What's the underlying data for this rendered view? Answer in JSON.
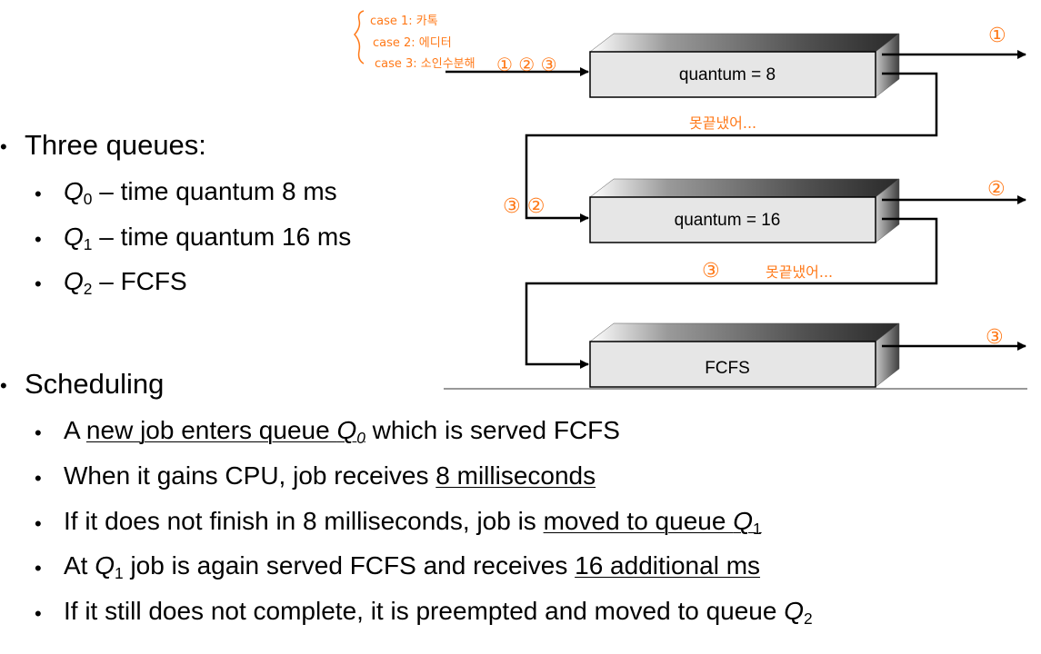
{
  "slide": {
    "three_queues_label": "Three queues:",
    "queues": [
      {
        "name": "Q",
        "sub": "0",
        "desc": "– time quantum 8 ms"
      },
      {
        "name": "Q",
        "sub": "1",
        "desc": "– time quantum 16 ms"
      },
      {
        "name": "Q",
        "sub": "2",
        "desc": "– FCFS"
      }
    ],
    "scheduling_label": "Scheduling",
    "rules": {
      "r1": {
        "pre": "A ",
        "u1": "new job enters queue ",
        "q": "Q",
        "sub": "0",
        "post": " which is served FCFS"
      },
      "r2": {
        "pre": "When it gains CPU, job receives ",
        "u1": "8 milliseconds"
      },
      "r3": {
        "pre": "If it does not finish in 8 milliseconds, job is ",
        "u1": "moved to queue ",
        "q": "Q",
        "sub": "1"
      },
      "r4": {
        "pre": "At ",
        "q": "Q",
        "sub": "1",
        "mid": " job is again served FCFS and receives ",
        "u1": "16 additional ms"
      },
      "r5": {
        "pre": "If it still does not complete, it is preempted and moved to queue ",
        "q": "Q",
        "sub": "2"
      }
    }
  },
  "diagram": {
    "boxes": [
      {
        "label": "quantum = 8"
      },
      {
        "label": "quantum = 16"
      },
      {
        "label": "FCFS"
      }
    ],
    "annotations": {
      "case1": "case 1: 카톡",
      "case2": "case 2: 에디터",
      "case3": "case 3: 소인수분해",
      "input_marks": "① ② ③",
      "q1_marks": "③ ②",
      "q2_mark": "③",
      "out1": "①",
      "out2": "②",
      "out3": "③",
      "unfinished1": "못끝냈어...",
      "unfinished2": "못끝냈어..."
    },
    "colors": {
      "box_face": "#e6e6e6",
      "annotation": "#ff7a1a",
      "line": "#000000"
    }
  }
}
